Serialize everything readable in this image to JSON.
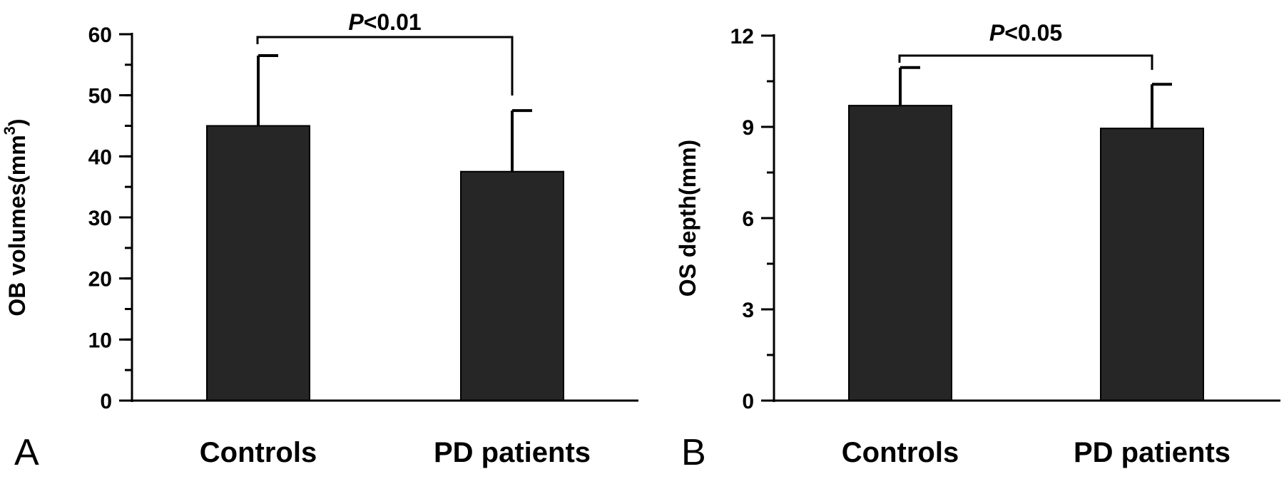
{
  "chart_data": [
    {
      "type": "bar",
      "panel_label": "A",
      "categories": [
        "Controls",
        "PD patients"
      ],
      "values": [
        45.0,
        37.5
      ],
      "error_plus": [
        11.5,
        10.0
      ],
      "ylabel": "OB volumes(mm",
      "ylabel_superscript": "3",
      "ylabel_suffix": ")",
      "ylim": [
        0,
        60
      ],
      "yticks": [
        0,
        10,
        20,
        30,
        40,
        50,
        60
      ],
      "ytick_labels": [
        "0",
        "10",
        "20",
        "30",
        "40",
        "50",
        "60"
      ],
      "minor_tick_step": 5,
      "bar_color": "#262626",
      "significance": {
        "p_letter": "P",
        "rest": "<0.01",
        "pair": [
          0,
          1
        ]
      }
    },
    {
      "type": "bar",
      "panel_label": "B",
      "categories": [
        "Controls",
        "PD patients"
      ],
      "values": [
        9.7,
        8.95
      ],
      "error_plus": [
        1.25,
        1.45
      ],
      "ylabel": "OS depth(mm)",
      "ylim": [
        0,
        12
      ],
      "yticks": [
        0,
        3,
        6,
        9,
        12
      ],
      "ytick_labels": [
        "0",
        "3",
        "6",
        "9",
        "12"
      ],
      "minor_tick_step": 1.5,
      "bar_color": "#262626",
      "significance": {
        "p_letter": "P",
        "rest": "<0.05",
        "pair": [
          0,
          1
        ]
      }
    }
  ]
}
